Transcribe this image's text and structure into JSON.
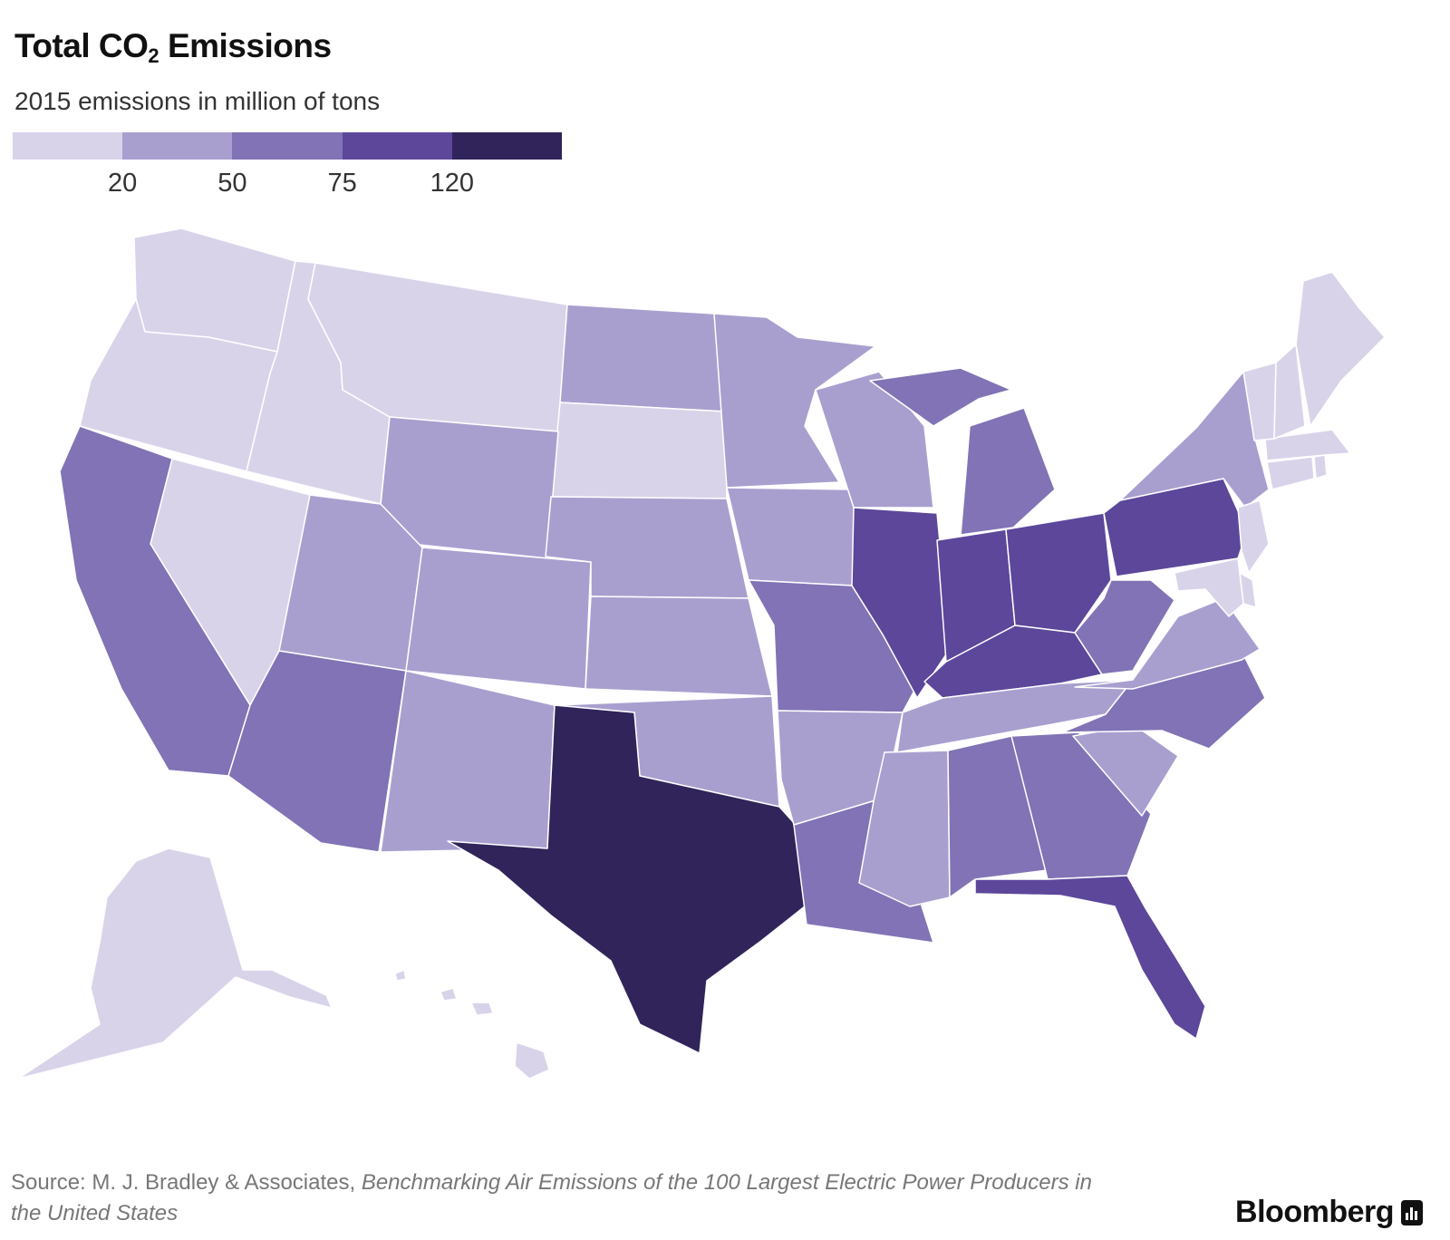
{
  "header": {
    "title_main": "Total CO",
    "title_sub": "2",
    "title_tail": " Emissions",
    "subtitle": "2015 emissions in million of tons"
  },
  "legend": {
    "colors": [
      "#d9d3ea",
      "#a99fcf",
      "#8173b5",
      "#5c479b",
      "#30245a"
    ],
    "ticks": [
      "20",
      "50",
      "75",
      "120"
    ]
  },
  "map_data": {
    "type": "choropleth",
    "value_unit": "million tons CO2 (2015)",
    "bins": [
      {
        "range": "< 20",
        "color": "#d9d3ea"
      },
      {
        "range": "20 – 50",
        "color": "#a99fcf"
      },
      {
        "range": "50 – 75",
        "color": "#8173b5"
      },
      {
        "range": "75 – 120",
        "color": "#5c479b"
      },
      {
        "range": "> 120",
        "color": "#30245a"
      }
    ],
    "states": {
      "WA": 0,
      "OR": 0,
      "ID": 0,
      "MT": 0,
      "NV": 0,
      "SD": 0,
      "ME": 0,
      "VT": 0,
      "NH": 0,
      "MA": 0,
      "CT": 0,
      "RI": 0,
      "NJ": 0,
      "MD": 0,
      "DE": 0,
      "AK": 0,
      "HI": 0,
      "ND": 1,
      "WY": 1,
      "UT": 1,
      "CO": 1,
      "NE": 1,
      "KS": 1,
      "NM": 1,
      "OK": 1,
      "MN": 1,
      "IA": 1,
      "WI": 1,
      "AR": 1,
      "MS": 1,
      "TN": 1,
      "SC": 1,
      "VA": 1,
      "NY": 1,
      "CA": 2,
      "AZ": 2,
      "MO": 2,
      "LA": 2,
      "AL": 2,
      "GA": 2,
      "NC": 2,
      "MI": 2,
      "WV": 2,
      "IL": 3,
      "IN": 3,
      "OH": 3,
      "PA": 3,
      "KY": 3,
      "FL": 3,
      "TX": 4
    }
  },
  "footer": {
    "source_prefix": "Source: M. J. Bradley & Associates, ",
    "source_title": "Benchmarking Air Emissions of the 100 Largest Electric Power Producers in the United States"
  },
  "brand": {
    "name": "Bloomberg"
  }
}
